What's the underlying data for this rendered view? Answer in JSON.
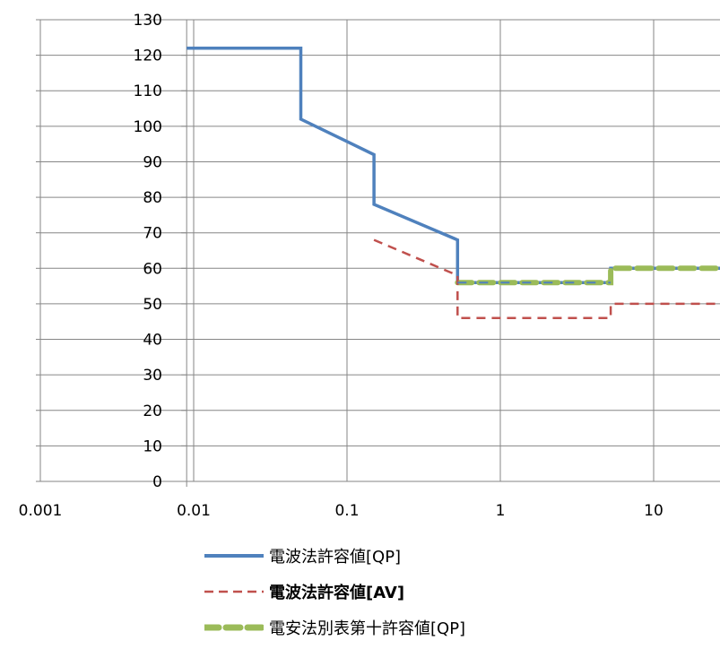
{
  "chart_data": {
    "type": "line",
    "x_scale": "log",
    "xlim": [
      0.001,
      30
    ],
    "ylim": [
      0,
      130
    ],
    "x_ticks": [
      0.001,
      0.01,
      0.1,
      1,
      10
    ],
    "x_tick_labels": [
      "0.001",
      "0.01",
      "0.1",
      "1",
      "10"
    ],
    "y_ticks": [
      0,
      10,
      20,
      30,
      40,
      50,
      60,
      70,
      80,
      90,
      100,
      110,
      120,
      130
    ],
    "y_tick_labels": [
      "0",
      "10",
      "20",
      "30",
      "40",
      "50",
      "60",
      "70",
      "80",
      "90",
      "100",
      "110",
      "120",
      "130"
    ],
    "grid": true,
    "legend_position": "bottom",
    "series": [
      {
        "name": "電波法許容値[QP]",
        "color": "#4f81bd",
        "style": "solid",
        "points": [
          [
            0.009,
            122
          ],
          [
            0.05,
            122
          ],
          [
            0.05,
            102
          ],
          [
            0.15,
            92
          ],
          [
            0.15,
            78
          ],
          [
            0.526,
            68
          ],
          [
            0.526,
            56
          ],
          [
            5.25,
            56
          ],
          [
            5.25,
            60
          ],
          [
            30,
            60
          ]
        ]
      },
      {
        "name": "電波法許容値[AV]",
        "color": "#c0504d",
        "style": "dashed",
        "points": [
          [
            0.15,
            68
          ],
          [
            0.526,
            58
          ],
          [
            0.526,
            46
          ],
          [
            5.25,
            46
          ],
          [
            5.25,
            50
          ],
          [
            30,
            50
          ]
        ]
      },
      {
        "name": "電安法別表第十許容値[QP]",
        "color": "#9bbb59",
        "style": "thick-dashed",
        "points": [
          [
            0.526,
            56
          ],
          [
            5.25,
            56
          ],
          [
            5.25,
            60
          ],
          [
            30,
            60
          ]
        ]
      }
    ]
  },
  "legend": {
    "items": [
      {
        "label": "電波法許容値[QP]"
      },
      {
        "label": "電波法許容値[AV]"
      },
      {
        "label": "電安法別表第十許容値[QP]"
      }
    ]
  }
}
